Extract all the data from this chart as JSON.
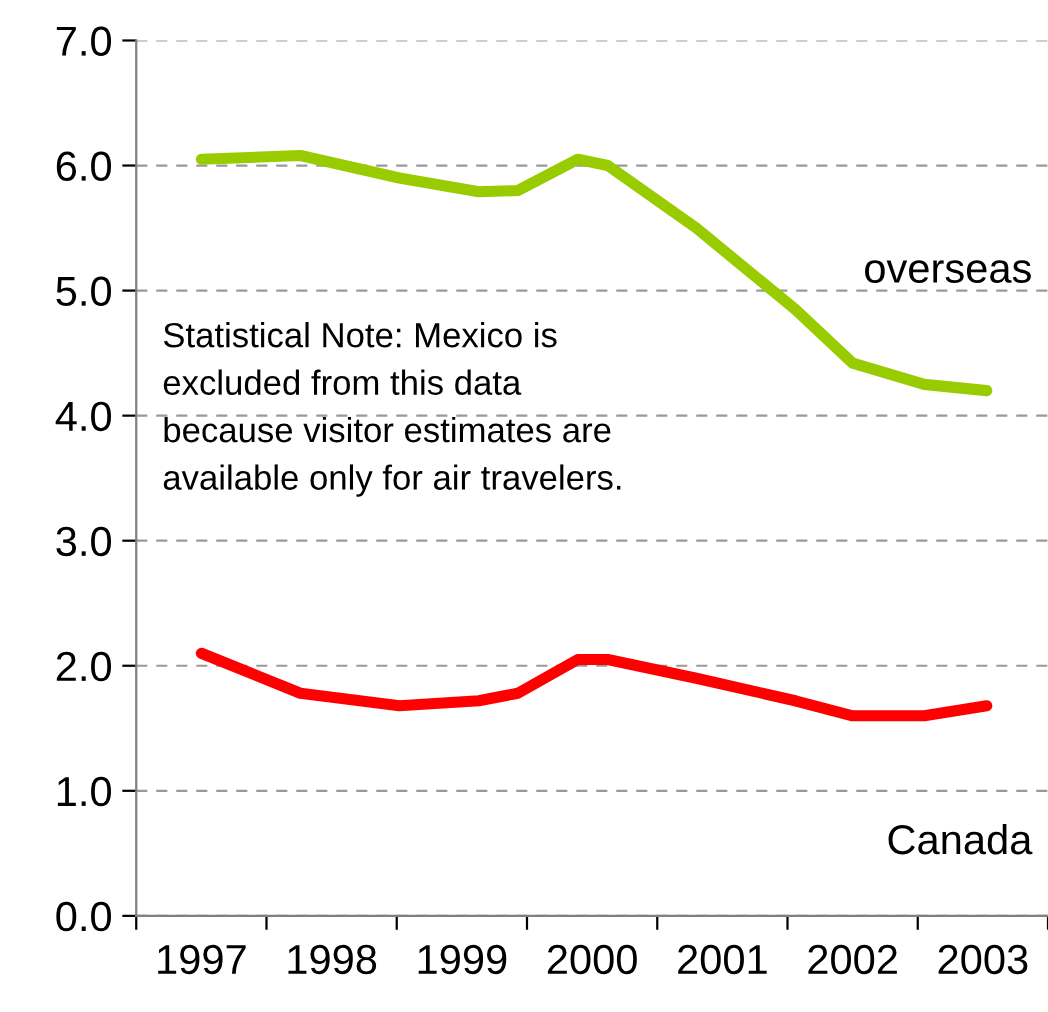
{
  "chart_data": {
    "type": "line",
    "x": [
      1997.0,
      1997.76,
      1998.52,
      1999.13,
      1999.43,
      1999.89,
      2000.12,
      2000.8,
      2001.56,
      2002.0,
      2002.55,
      2003.03
    ],
    "series": [
      {
        "name": "overseas",
        "color": "#99cc00",
        "values": [
          6.05,
          6.08,
          5.9,
          5.79,
          5.8,
          6.05,
          6.0,
          5.5,
          4.85,
          4.42,
          4.25,
          4.2
        ]
      },
      {
        "name": "Canada",
        "color": "#ff0000",
        "values": [
          2.1,
          1.78,
          1.68,
          1.72,
          1.78,
          2.05,
          2.05,
          1.9,
          1.72,
          1.6,
          1.6,
          1.68
        ]
      }
    ],
    "xlim": [
      1996.5,
      2003.5
    ],
    "xticks": [
      {
        "value": 1996.5,
        "label": null
      },
      1997,
      {
        "value": 1997.5,
        "label": null
      },
      1998,
      {
        "value": 1998.5,
        "label": null
      },
      1999,
      {
        "value": 1999.5,
        "label": null
      },
      2000,
      {
        "value": 2000.5,
        "label": null
      },
      2001,
      {
        "value": 2001.5,
        "label": null
      },
      2002,
      {
        "value": 2002.5,
        "label": null
      },
      2003,
      {
        "value": 2003.5,
        "label": null
      }
    ],
    "ylim": [
      0,
      7
    ],
    "yticks": [
      {
        "value": 0,
        "label": "0.0"
      },
      {
        "value": 1,
        "label": "1.0"
      },
      {
        "value": 2,
        "label": "2.0"
      },
      {
        "value": 3,
        "label": "3.0"
      },
      {
        "value": 4,
        "label": "4.0"
      },
      {
        "value": 5,
        "label": "5.0"
      },
      {
        "value": 6,
        "label": "6.0"
      },
      {
        "value": 7,
        "label": "7.0"
      }
    ],
    "grid": "y",
    "marker": "none",
    "line_style": "solid",
    "annotations": [
      "Statistical Note: Mexico is\nexcluded from this data\nbecause visitor estimates are\navailable only for air travelers."
    ]
  }
}
